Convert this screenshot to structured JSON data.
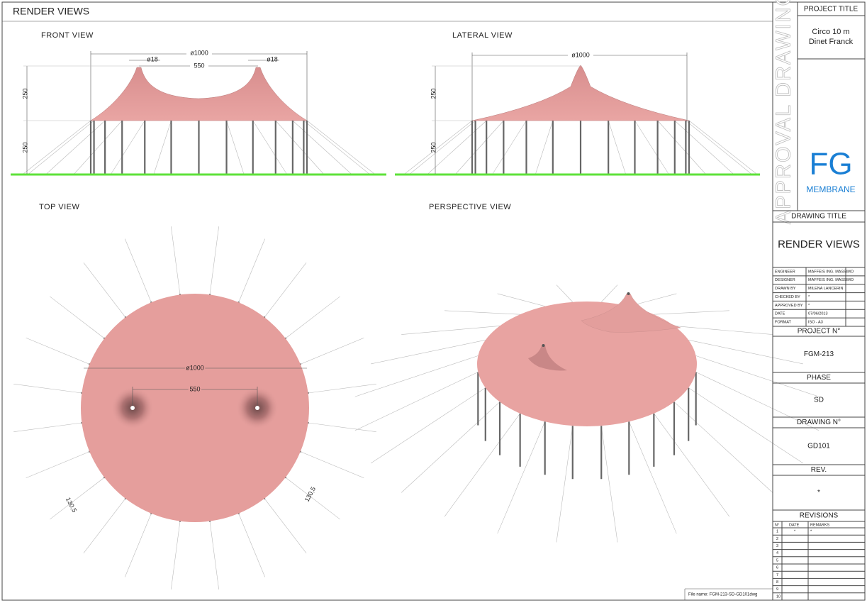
{
  "header": {
    "title": "RENDER VIEWS"
  },
  "views": {
    "front": {
      "label": "FRONT VIEW",
      "dim_diameter": "ø1000",
      "dim_top_left": "ø18",
      "dim_top_right": "ø18",
      "dim_span": "550",
      "dim_roof_height": "250",
      "dim_pole_height": "250"
    },
    "lateral": {
      "label": "LATERAL VIEW",
      "dim_diameter": "ø1000",
      "dim_roof_height": "250",
      "dim_pole_height": "250"
    },
    "top": {
      "label": "TOP VIEW",
      "dim_diameter": "ø1000",
      "dim_span": "550",
      "dim_spacing_left": "130,5",
      "dim_spacing_right": "130,5"
    },
    "perspective": {
      "label": "PERSPECTIVE VIEW"
    }
  },
  "title_block": {
    "stamp": "APPROVAL DRAWING",
    "project_title_label": "PROJECT TITLE",
    "project_title": [
      "Circo 10 m",
      "Dinet Franck"
    ],
    "logo": {
      "mark": "FG",
      "name": "MEMBRANE"
    },
    "drawing_title_label": "DRAWING TITLE",
    "drawing_title": "RENDER VIEWS",
    "people": [
      [
        "ENGINEER",
        "MAFFEIS ING. MASSIMO"
      ],
      [
        "DESIGNER",
        "MAFFEIS ING. MASSIMO"
      ],
      [
        "DRAWN BY",
        "MILENA LANCERIN"
      ],
      [
        "CHECKED BY",
        "*"
      ],
      [
        "APPROVED BY",
        "*"
      ],
      [
        "DATE",
        "07/06/2013"
      ],
      [
        "FORMAT",
        "ISO - A3"
      ]
    ],
    "project_no_label": "PROJECT N°",
    "project_no": "FGM-213",
    "phase_label": "PHASE",
    "phase": "SD",
    "drawing_no_label": "DRAWING N°",
    "drawing_no": "GD101",
    "rev_label": "REV.",
    "rev": "*",
    "revisions_label": "REVISIONS",
    "revisions_header": [
      "N°",
      "DATE",
      "REMARKS"
    ],
    "revisions": [
      {
        "n": "1",
        "date": "*",
        "remarks": "*"
      },
      {
        "n": "2"
      },
      {
        "n": "3"
      },
      {
        "n": "4"
      },
      {
        "n": "5"
      },
      {
        "n": "6"
      },
      {
        "n": "7"
      },
      {
        "n": "8"
      },
      {
        "n": "9"
      },
      {
        "n": "10"
      }
    ]
  },
  "footer": {
    "file_name": "File name: FGM-213-SD-GD101dwg"
  }
}
